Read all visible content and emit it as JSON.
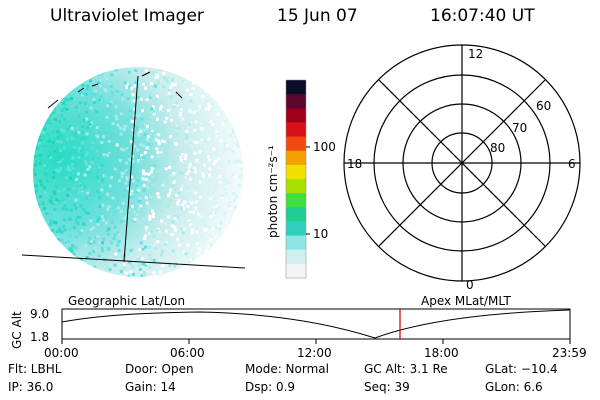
{
  "header": {
    "instrument": "Ultraviolet Imager",
    "date": "15 Jun 07",
    "time": "16:07:40 UT"
  },
  "colorbar": {
    "unit_label": "photon cm⁻²s⁻¹",
    "ticks": [
      "100",
      "10"
    ],
    "colors": [
      "#0b0b2a",
      "#5a0830",
      "#a0001a",
      "#d8101a",
      "#f04a10",
      "#f6a000",
      "#f0e000",
      "#a8e000",
      "#40e040",
      "#20d090",
      "#30d0c0",
      "#90e6e4",
      "#d0f0f0",
      "#f4f4f4"
    ]
  },
  "polar_plot": {
    "mlt_labels": {
      "top": "12",
      "left": "18",
      "right": "6",
      "bottom": "0"
    },
    "lat_labels": [
      "60",
      "70",
      "80"
    ]
  },
  "timeline": {
    "left_label": "Geographic Lat/Lon",
    "right_label": "Apex MLat/MLT",
    "y_axis_label": "GC Alt",
    "y_ticks": [
      "9.0",
      "1.8"
    ],
    "x_ticks": [
      "00:00",
      "06:00",
      "12:00",
      "18:00",
      "23:59"
    ],
    "marker_color": "#cc0000"
  },
  "status": {
    "flt": "Flt: LBHL",
    "ip": "IP: 36.0",
    "door": "Door: Open",
    "gain": "Gain: 14",
    "mode": "Mode: Normal",
    "dsp": "Dsp:     0.9",
    "gc_alt": "GC Alt: 3.1 Re",
    "seq": "Seq: 39",
    "glat": "GLat: −10.4",
    "glon": "GLon:    6.6"
  }
}
